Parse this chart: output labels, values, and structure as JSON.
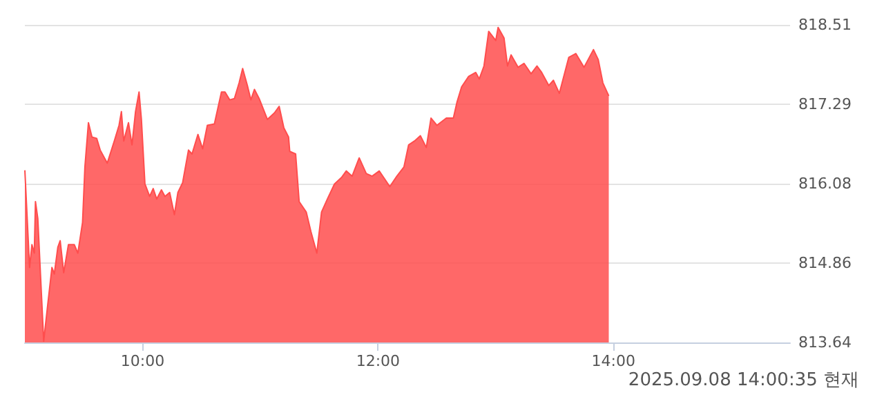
{
  "chart_data": {
    "type": "area",
    "x": [
      9.0,
      9.04,
      9.06,
      9.08,
      9.09,
      9.11,
      9.14,
      9.16,
      9.19,
      9.23,
      9.25,
      9.28,
      9.3,
      9.33,
      9.37,
      9.42,
      9.45,
      9.49,
      9.51,
      9.54,
      9.57,
      9.61,
      9.64,
      9.7,
      9.76,
      9.8,
      9.82,
      9.84,
      9.88,
      9.91,
      9.94,
      9.97,
      9.99,
      10.02,
      10.06,
      10.09,
      10.12,
      10.16,
      10.19,
      10.23,
      10.27,
      10.3,
      10.34,
      10.39,
      10.42,
      10.47,
      10.51,
      10.55,
      10.61,
      10.67,
      10.7,
      10.74,
      10.78,
      10.82,
      10.85,
      10.89,
      10.92,
      10.95,
      10.99,
      11.06,
      11.12,
      11.16,
      11.2,
      11.24,
      11.25,
      11.3,
      11.33,
      11.39,
      11.43,
      11.48,
      11.52,
      11.57,
      11.63,
      11.69,
      11.73,
      11.78,
      11.84,
      11.9,
      11.95,
      12.01,
      12.1,
      12.16,
      12.22,
      12.26,
      12.31,
      12.36,
      12.41,
      12.45,
      12.5,
      12.58,
      12.64,
      12.67,
      12.71,
      12.77,
      12.83,
      12.86,
      12.9,
      12.94,
      13.0,
      13.02,
      13.07,
      13.1,
      13.13,
      13.19,
      13.24,
      13.3,
      13.35,
      13.39,
      13.45,
      13.49,
      13.54,
      13.62,
      13.68,
      13.75,
      13.83,
      13.87,
      13.91,
      13.96
    ],
    "series": [
      {
        "color": "#ff4d4d",
        "values": [
          816.28,
          814.79,
          815.14,
          815.01,
          815.8,
          815.54,
          814.41,
          813.66,
          814.15,
          814.79,
          814.69,
          815.1,
          815.2,
          814.71,
          815.14,
          815.14,
          815.01,
          815.48,
          816.33,
          817.01,
          816.79,
          816.77,
          816.59,
          816.39,
          816.73,
          816.97,
          817.18,
          816.73,
          817.01,
          816.67,
          817.18,
          817.48,
          817.06,
          816.07,
          815.88,
          816.0,
          815.84,
          815.98,
          815.88,
          815.94,
          815.6,
          815.94,
          816.09,
          816.59,
          816.53,
          816.83,
          816.61,
          816.97,
          816.99,
          817.48,
          817.48,
          817.36,
          817.38,
          817.62,
          817.84,
          817.58,
          817.36,
          817.52,
          817.38,
          817.06,
          817.16,
          817.26,
          816.93,
          816.79,
          816.57,
          816.53,
          815.8,
          815.64,
          815.34,
          815.01,
          815.64,
          815.84,
          816.07,
          816.17,
          816.27,
          816.19,
          816.47,
          816.23,
          816.19,
          816.27,
          816.03,
          816.19,
          816.33,
          816.67,
          816.73,
          816.81,
          816.63,
          817.08,
          816.97,
          817.08,
          817.08,
          817.32,
          817.56,
          817.72,
          817.78,
          817.68,
          817.88,
          818.41,
          818.27,
          818.47,
          818.31,
          817.88,
          818.05,
          817.86,
          817.92,
          817.76,
          817.88,
          817.78,
          817.58,
          817.66,
          817.46,
          818.01,
          818.07,
          817.86,
          818.13,
          817.98,
          817.62,
          817.42
        ]
      }
    ],
    "xlim": [
      9,
      15.5
    ],
    "xticks": [
      {
        "value": 10,
        "label": "10:00"
      },
      {
        "value": 12,
        "label": "12:00"
      },
      {
        "value": 14,
        "label": "14:00"
      }
    ],
    "ylim": [
      813.64,
      818.51
    ],
    "yticks": [
      813.64,
      814.86,
      816.08,
      817.29,
      818.51
    ],
    "grid": "y",
    "marker": "none",
    "annotations": [
      "2025.09.08 14:00:35 현재"
    ]
  }
}
